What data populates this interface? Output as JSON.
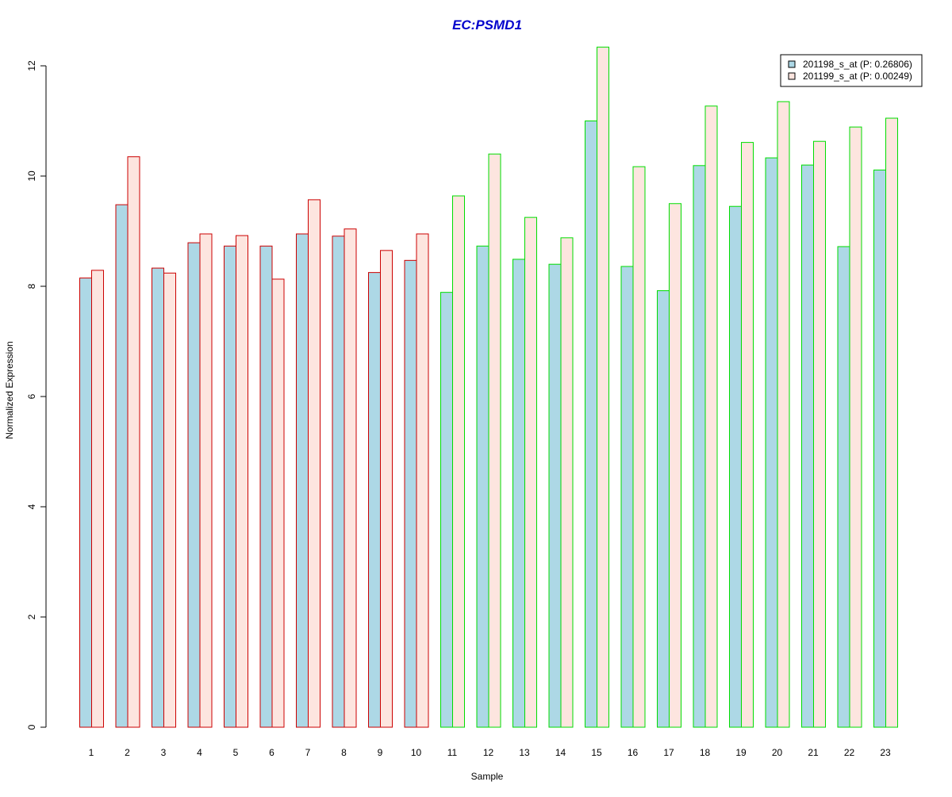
{
  "chart_data": {
    "type": "bar",
    "title": "EC:PSMD1",
    "xlabel": "Sample",
    "ylabel": "Normalized Expression",
    "ylim": [
      0,
      12
    ],
    "yticks": [
      "0",
      "2",
      "4",
      "6",
      "8",
      "10",
      "12"
    ],
    "categories": [
      "1",
      "2",
      "3",
      "4",
      "5",
      "6",
      "7",
      "8",
      "9",
      "10",
      "11",
      "12",
      "13",
      "14",
      "15",
      "16",
      "17",
      "18",
      "19",
      "20",
      "21",
      "22",
      "23"
    ],
    "group_border_colors": [
      "#cc0000",
      "#cc0000",
      "#cc0000",
      "#cc0000",
      "#cc0000",
      "#cc0000",
      "#cc0000",
      "#cc0000",
      "#cc0000",
      "#cc0000",
      "#00dd00",
      "#00dd00",
      "#00dd00",
      "#00dd00",
      "#00dd00",
      "#00dd00",
      "#00dd00",
      "#00dd00",
      "#00dd00",
      "#00dd00",
      "#00dd00",
      "#00dd00",
      "#00dd00"
    ],
    "series": [
      {
        "name": "201198_s_at (P: 0.26806)",
        "fill": "#add8e6",
        "values": [
          8.15,
          9.48,
          8.33,
          8.79,
          8.73,
          8.73,
          8.95,
          8.91,
          8.25,
          8.47,
          7.89,
          8.73,
          8.49,
          8.4,
          11.0,
          8.36,
          7.92,
          10.19,
          9.45,
          10.33,
          10.2,
          8.72,
          10.11
        ]
      },
      {
        "name": "201199_s_at (P: 0.00249)",
        "fill": "#fde5df",
        "values": [
          8.29,
          10.35,
          8.24,
          8.95,
          8.92,
          8.13,
          9.57,
          9.04,
          8.65,
          8.95,
          9.64,
          10.4,
          9.25,
          8.88,
          12.34,
          10.17,
          9.5,
          11.27,
          10.61,
          11.35,
          10.63,
          10.89,
          11.05
        ]
      }
    ],
    "legend_position": "top-right",
    "title_color": "#0000cc",
    "grid": false
  }
}
